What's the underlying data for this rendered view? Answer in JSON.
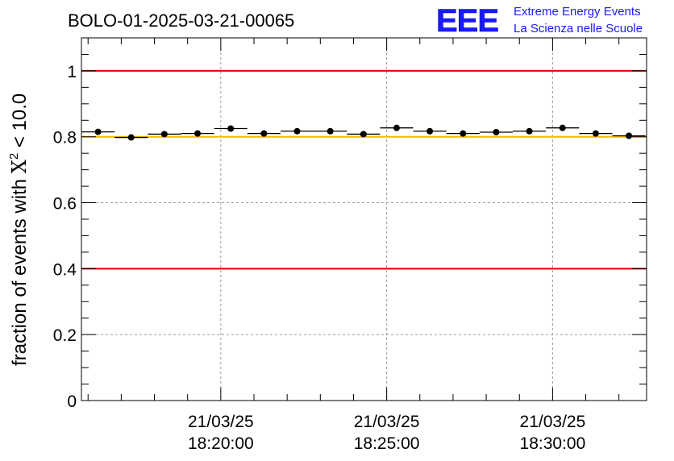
{
  "header": {
    "run_title": "BOLO-01-2025-03-21-00065",
    "logo_text": "EEE",
    "logo_line1": "Extreme Energy Events",
    "logo_line2": "La Scienza nelle Scuole",
    "logo_color": "#1a1aff"
  },
  "chart_data": {
    "type": "scatter",
    "title": "BOLO-01-2025-03-21-00065",
    "ylabel_prefix": "fraction of events with ",
    "ylabel_symbol": "X",
    "ylabel_sup": "2",
    "ylabel_suffix": " < 10.0",
    "ylabel": "fraction of events with X² < 10.0",
    "xlabel": "",
    "ylim": [
      0,
      1.1
    ],
    "x_unit": "time (21/03/25)",
    "xlim": [
      "18:15:48",
      "18:32:50"
    ],
    "y_ticks": [
      {
        "value": 0,
        "label": "0"
      },
      {
        "value": 0.2,
        "label": "0.2"
      },
      {
        "value": 0.4,
        "label": "0.4"
      },
      {
        "value": 0.6,
        "label": "0.6"
      },
      {
        "value": 0.8,
        "label": "0.8"
      },
      {
        "value": 1,
        "label": "1"
      }
    ],
    "x_ticks": [
      {
        "time": "18:20:00",
        "date_label": "21/03/25",
        "time_label": "18:20:00"
      },
      {
        "time": "18:25:00",
        "date_label": "21/03/25",
        "time_label": "18:25:00"
      },
      {
        "time": "18:30:00",
        "date_label": "21/03/25",
        "time_label": "18:30:00"
      }
    ],
    "grid": true,
    "reference_lines": [
      {
        "y": 1.0,
        "color": "#e00000"
      },
      {
        "y": 0.4,
        "color": "#e00000"
      },
      {
        "y": 0.8,
        "color": "#f5b800"
      }
    ],
    "series": [
      {
        "marker_color": "#000000",
        "points": [
          {
            "x_start": "18:15:48",
            "x_end": "18:16:48",
            "y": 0.815
          },
          {
            "x_start": "18:16:48",
            "x_end": "18:17:48",
            "y": 0.798
          },
          {
            "x_start": "18:17:48",
            "x_end": "18:18:48",
            "y": 0.808
          },
          {
            "x_start": "18:18:48",
            "x_end": "18:19:48",
            "y": 0.81
          },
          {
            "x_start": "18:19:48",
            "x_end": "18:20:48",
            "y": 0.825
          },
          {
            "x_start": "18:20:48",
            "x_end": "18:21:48",
            "y": 0.81
          },
          {
            "x_start": "18:21:48",
            "x_end": "18:22:48",
            "y": 0.817
          },
          {
            "x_start": "18:22:48",
            "x_end": "18:23:48",
            "y": 0.817
          },
          {
            "x_start": "18:23:48",
            "x_end": "18:24:48",
            "y": 0.808
          },
          {
            "x_start": "18:24:48",
            "x_end": "18:25:48",
            "y": 0.827
          },
          {
            "x_start": "18:25:48",
            "x_end": "18:26:48",
            "y": 0.817
          },
          {
            "x_start": "18:26:48",
            "x_end": "18:27:48",
            "y": 0.81
          },
          {
            "x_start": "18:27:48",
            "x_end": "18:28:48",
            "y": 0.814
          },
          {
            "x_start": "18:28:48",
            "x_end": "18:29:48",
            "y": 0.817
          },
          {
            "x_start": "18:29:48",
            "x_end": "18:30:48",
            "y": 0.827
          },
          {
            "x_start": "18:30:48",
            "x_end": "18:31:48",
            "y": 0.81
          },
          {
            "x_start": "18:31:48",
            "x_end": "18:32:48",
            "y": 0.803
          }
        ]
      }
    ]
  }
}
